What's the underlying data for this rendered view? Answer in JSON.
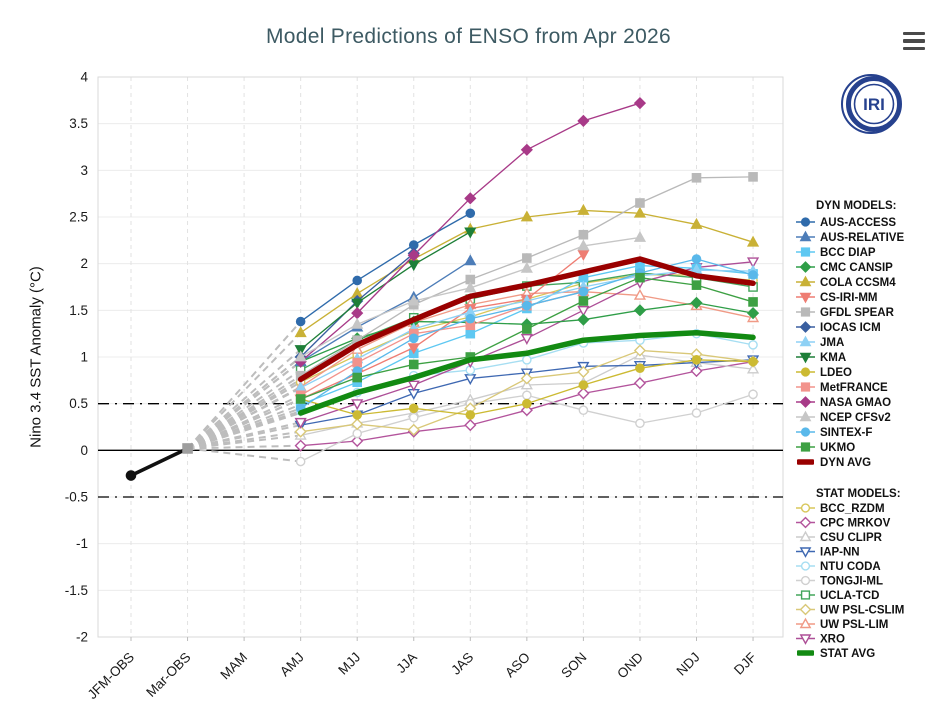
{
  "header": {
    "title": "Model Predictions of ENSO from Apr 2026",
    "menu_icon": "hamburger-menu-icon",
    "logo_text": "IRI",
    "logo_color": "#26418e",
    "title_color": "#3d5a63"
  },
  "chart_data": {
    "type": "line",
    "title": "Model Predictions of ENSO from Apr 2026",
    "ylabel": "Nino 3.4 SST Anomaly (°C)",
    "ylim": [
      -2,
      4
    ],
    "y_tick_step": 0.5,
    "y_ticks": [
      "4",
      "3.5",
      "3",
      "2.5",
      "2",
      "1.5",
      "1",
      "0.5",
      "0",
      "-0.5",
      "-1",
      "-1.5",
      "-2"
    ],
    "categories": [
      "JFM-OBS",
      "Mar-OBS",
      "MAM",
      "AMJ",
      "MJJ",
      "JJA",
      "JAS",
      "ASO",
      "SON",
      "OND",
      "NDJ",
      "DJF"
    ],
    "grid": {
      "horizontal": "solid-light",
      "vertical": "dashed-light"
    },
    "reference_lines": [
      {
        "y": 0.5,
        "style": "dash-dot",
        "color": "#000000"
      },
      {
        "y": 0.0,
        "style": "solid",
        "color": "#000000"
      },
      {
        "y": -0.5,
        "style": "dash-dot",
        "color": "#000000"
      }
    ],
    "observed": {
      "points": [
        "JFM-OBS",
        "Mar-OBS"
      ],
      "values": [
        -0.27,
        0.02
      ],
      "marker_shapes": [
        "circle",
        "square"
      ],
      "marker_colors": [
        "#111111",
        "#9e9e9e"
      ],
      "line_color": "#111111"
    },
    "fan_lines": {
      "style": "dashed",
      "color": "#bdbdbd",
      "from": "Mar-OBS",
      "to": "AMJ"
    },
    "legend": {
      "dyn_header": "DYN MODELS:",
      "stat_header": "STAT MODELS:"
    },
    "start_index": 3,
    "series": [
      {
        "name": "AUS-ACCESS",
        "group": "dyn",
        "color": "#2f6bab",
        "marker": "circle",
        "open": false,
        "avg": false,
        "values": [
          1.38,
          1.82,
          2.2,
          2.54,
          null,
          null,
          null,
          null,
          null
        ]
      },
      {
        "name": "AUS-RELATIVE",
        "group": "dyn",
        "color": "#4d7db8",
        "marker": "triangle",
        "open": false,
        "avg": false,
        "values": [
          0.95,
          1.32,
          1.64,
          2.03,
          null,
          null,
          null,
          null,
          null
        ]
      },
      {
        "name": "BCC DIAP",
        "group": "dyn",
        "color": "#5ec8f2",
        "marker": "square",
        "open": false,
        "avg": false,
        "values": [
          0.49,
          0.73,
          1.04,
          1.25,
          1.52,
          1.85,
          1.98,
          1.95,
          1.89
        ]
      },
      {
        "name": "CMC CANSIP",
        "group": "dyn",
        "color": "#2f9e48",
        "marker": "diamond",
        "open": false,
        "avg": false,
        "values": [
          0.95,
          1.2,
          1.38,
          1.37,
          1.35,
          1.4,
          1.5,
          1.58,
          1.47
        ]
      },
      {
        "name": "COLA CCSM4",
        "group": "dyn",
        "color": "#c9b136",
        "marker": "triangle",
        "open": false,
        "avg": false,
        "values": [
          1.26,
          1.68,
          2.05,
          2.37,
          2.5,
          2.57,
          2.54,
          2.42,
          2.23
        ]
      },
      {
        "name": "CS-IRI-MM",
        "group": "dyn",
        "color": "#ee7d73",
        "marker": "triangle-down",
        "open": false,
        "avg": false,
        "values": [
          0.55,
          0.82,
          1.1,
          1.52,
          1.62,
          2.1,
          null,
          null,
          null
        ]
      },
      {
        "name": "GFDL SPEAR",
        "group": "dyn",
        "color": "#b9b9b9",
        "marker": "square",
        "open": false,
        "avg": false,
        "values": [
          0.8,
          1.18,
          1.56,
          1.83,
          2.06,
          2.31,
          2.65,
          2.92,
          2.93
        ]
      },
      {
        "name": "IOCAS ICM",
        "group": "dyn",
        "color": "#3a5fa0",
        "marker": "diamond",
        "open": false,
        "avg": false,
        "values": [
          1.0,
          1.6,
          2.11,
          null,
          null,
          null,
          null,
          null,
          null
        ]
      },
      {
        "name": "JMA",
        "group": "dyn",
        "color": "#8ed1f5",
        "marker": "triangle",
        "open": false,
        "avg": false,
        "values": [
          0.67,
          0.98,
          1.3,
          1.48,
          1.6,
          1.75,
          1.87,
          1.93,
          1.92
        ]
      },
      {
        "name": "KMA",
        "group": "dyn",
        "color": "#1e7f38",
        "marker": "triangle-down",
        "open": false,
        "avg": false,
        "values": [
          1.08,
          1.58,
          1.99,
          2.34,
          null,
          null,
          null,
          null,
          null
        ]
      },
      {
        "name": "LDEO",
        "group": "dyn",
        "color": "#ccba32",
        "marker": "circle",
        "open": false,
        "avg": false,
        "values": [
          0.55,
          0.38,
          0.45,
          0.38,
          0.5,
          0.7,
          0.88,
          0.97,
          0.95
        ]
      },
      {
        "name": "MetFRANCE",
        "group": "dyn",
        "color": "#f2938c",
        "marker": "square",
        "open": false,
        "avg": false,
        "values": [
          0.59,
          0.94,
          1.25,
          1.34,
          1.55,
          1.7,
          null,
          null,
          null
        ]
      },
      {
        "name": "NASA GMAO",
        "group": "dyn",
        "color": "#a83a88",
        "marker": "diamond",
        "open": false,
        "avg": false,
        "values": [
          0.95,
          1.47,
          2.09,
          2.7,
          3.22,
          3.53,
          3.72,
          null,
          null
        ]
      },
      {
        "name": "NCEP CFSv2",
        "group": "dyn",
        "color": "#c6c6c6",
        "marker": "triangle",
        "open": false,
        "avg": false,
        "values": [
          1.0,
          1.35,
          1.6,
          1.74,
          1.95,
          2.19,
          2.28,
          null,
          null
        ]
      },
      {
        "name": "SINTEX-F",
        "group": "dyn",
        "color": "#59b8ea",
        "marker": "circle",
        "open": false,
        "avg": false,
        "values": [
          0.45,
          0.85,
          1.2,
          1.41,
          1.55,
          1.7,
          1.9,
          2.05,
          1.88
        ]
      },
      {
        "name": "UKMO",
        "group": "dyn",
        "color": "#3da043",
        "marker": "square",
        "open": false,
        "avg": false,
        "values": [
          0.55,
          0.78,
          0.92,
          1.0,
          1.3,
          1.6,
          1.85,
          1.77,
          1.59
        ]
      },
      {
        "name": "DYN AVG",
        "group": "dyn",
        "color": "#990000",
        "marker": "line",
        "open": false,
        "avg": true,
        "values": [
          0.76,
          1.13,
          1.4,
          1.65,
          1.77,
          1.91,
          2.05,
          1.87,
          1.79
        ]
      },
      {
        "name": "BCC_RZDM",
        "group": "stat",
        "color": "#d8c75a",
        "marker": "circle",
        "open": true,
        "avg": false,
        "values": [
          0.73,
          1.02,
          1.28,
          1.43,
          1.62,
          1.79,
          1.88,
          1.88,
          1.82
        ]
      },
      {
        "name": "CPC MRKOV",
        "group": "stat",
        "color": "#b3549c",
        "marker": "diamond",
        "open": true,
        "avg": false,
        "values": [
          0.05,
          0.1,
          0.2,
          0.27,
          0.43,
          0.61,
          0.72,
          0.85,
          0.95
        ]
      },
      {
        "name": "CSU CLIPR",
        "group": "stat",
        "color": "#cccccc",
        "marker": "triangle",
        "open": true,
        "avg": false,
        "values": [
          0.16,
          0.29,
          0.4,
          0.54,
          0.7,
          0.72,
          1.02,
          0.94,
          0.87
        ]
      },
      {
        "name": "IAP-NN",
        "group": "stat",
        "color": "#3e68b2",
        "marker": "triangle-down",
        "open": true,
        "avg": false,
        "values": [
          0.27,
          0.38,
          0.61,
          0.77,
          0.83,
          0.9,
          0.91,
          0.94,
          0.97
        ]
      },
      {
        "name": "NTU CODA",
        "group": "stat",
        "color": "#a6def2",
        "marker": "circle",
        "open": true,
        "avg": false,
        "values": [
          0.42,
          0.62,
          0.8,
          0.86,
          0.97,
          1.15,
          1.18,
          1.25,
          1.13
        ]
      },
      {
        "name": "TONGJI-ML",
        "group": "stat",
        "color": "#d0d0d0",
        "marker": "circle",
        "open": true,
        "avg": false,
        "values": [
          -0.12,
          0.18,
          0.35,
          0.5,
          0.59,
          0.43,
          0.29,
          0.4,
          0.6
        ]
      },
      {
        "name": "UCLA-TCD",
        "group": "stat",
        "color": "#43a55c",
        "marker": "square",
        "open": true,
        "avg": false,
        "values": [
          0.86,
          1.18,
          1.42,
          1.62,
          1.76,
          1.8,
          1.9,
          1.85,
          1.75
        ]
      },
      {
        "name": "UW PSL-CSLIM",
        "group": "stat",
        "color": "#d9c878",
        "marker": "diamond",
        "open": true,
        "avg": false,
        "values": [
          0.2,
          0.28,
          0.22,
          0.45,
          0.77,
          0.84,
          1.07,
          1.03,
          0.95
        ]
      },
      {
        "name": "UW PSL-LIM",
        "group": "stat",
        "color": "#f09a86",
        "marker": "triangle",
        "open": true,
        "avg": false,
        "values": [
          0.68,
          1.08,
          1.37,
          1.56,
          1.68,
          1.7,
          1.66,
          1.55,
          1.42
        ]
      },
      {
        "name": "XRO",
        "group": "stat",
        "color": "#ad4f97",
        "marker": "triangle-down",
        "open": true,
        "avg": false,
        "values": [
          0.3,
          0.5,
          0.7,
          0.95,
          1.2,
          1.5,
          1.8,
          1.96,
          2.02
        ]
      },
      {
        "name": "STAT AVG",
        "group": "stat",
        "color": "#128a12",
        "marker": "line",
        "open": false,
        "avg": true,
        "values": [
          0.4,
          0.62,
          0.78,
          0.97,
          1.04,
          1.18,
          1.23,
          1.26,
          1.21
        ]
      }
    ]
  }
}
